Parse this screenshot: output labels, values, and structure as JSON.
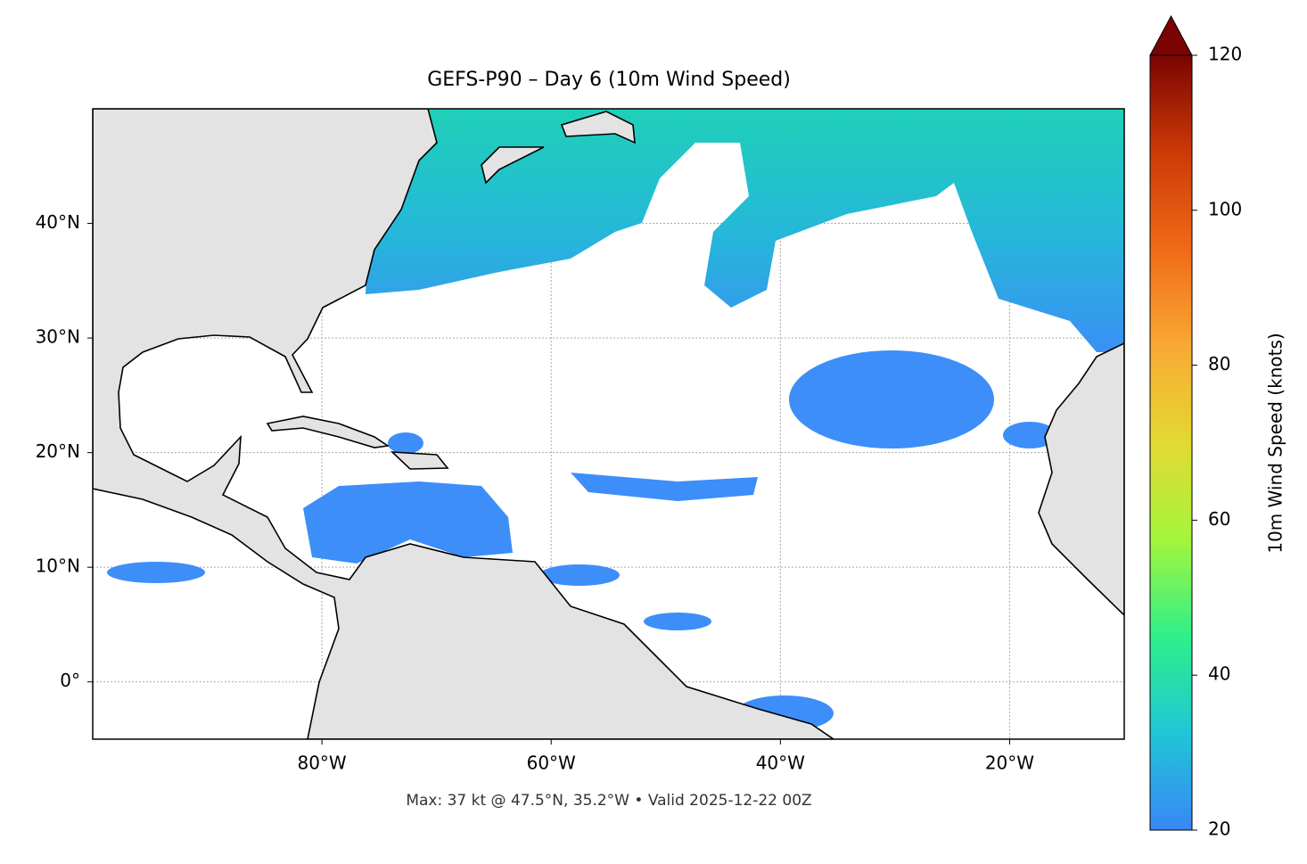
{
  "chart_data": {
    "type": "map",
    "title": "GEFS-P90 – Day 6 (10m Wind Speed)",
    "annotation": "Max: 37 kt @ 47.5°N, 35.2°W • Valid 2025-12-22 00Z",
    "xlim": [
      -100,
      -10
    ],
    "ylim": [
      -5,
      50
    ],
    "xticks": [
      {
        "value": -80,
        "label": "80°W"
      },
      {
        "value": -60,
        "label": "60°W"
      },
      {
        "value": -40,
        "label": "40°W"
      },
      {
        "value": -20,
        "label": "20°W"
      }
    ],
    "yticks": [
      {
        "value": 0,
        "label": "0°"
      },
      {
        "value": 10,
        "label": "10°N"
      },
      {
        "value": 20,
        "label": "20°N"
      },
      {
        "value": 30,
        "label": "30°N"
      },
      {
        "value": 40,
        "label": "40°N"
      }
    ],
    "grid": true,
    "colorbar": {
      "label": "10m Wind Speed (knots)",
      "lim": [
        20,
        120
      ],
      "ticks": [
        20,
        40,
        60,
        80,
        100,
        120
      ],
      "colors": [
        "#3a86f7",
        "#1fc6d6",
        "#2ef08a",
        "#a4f53c",
        "#e3d932",
        "#f9a833",
        "#f06a18",
        "#cc3a06",
        "#7a0403"
      ]
    }
  }
}
